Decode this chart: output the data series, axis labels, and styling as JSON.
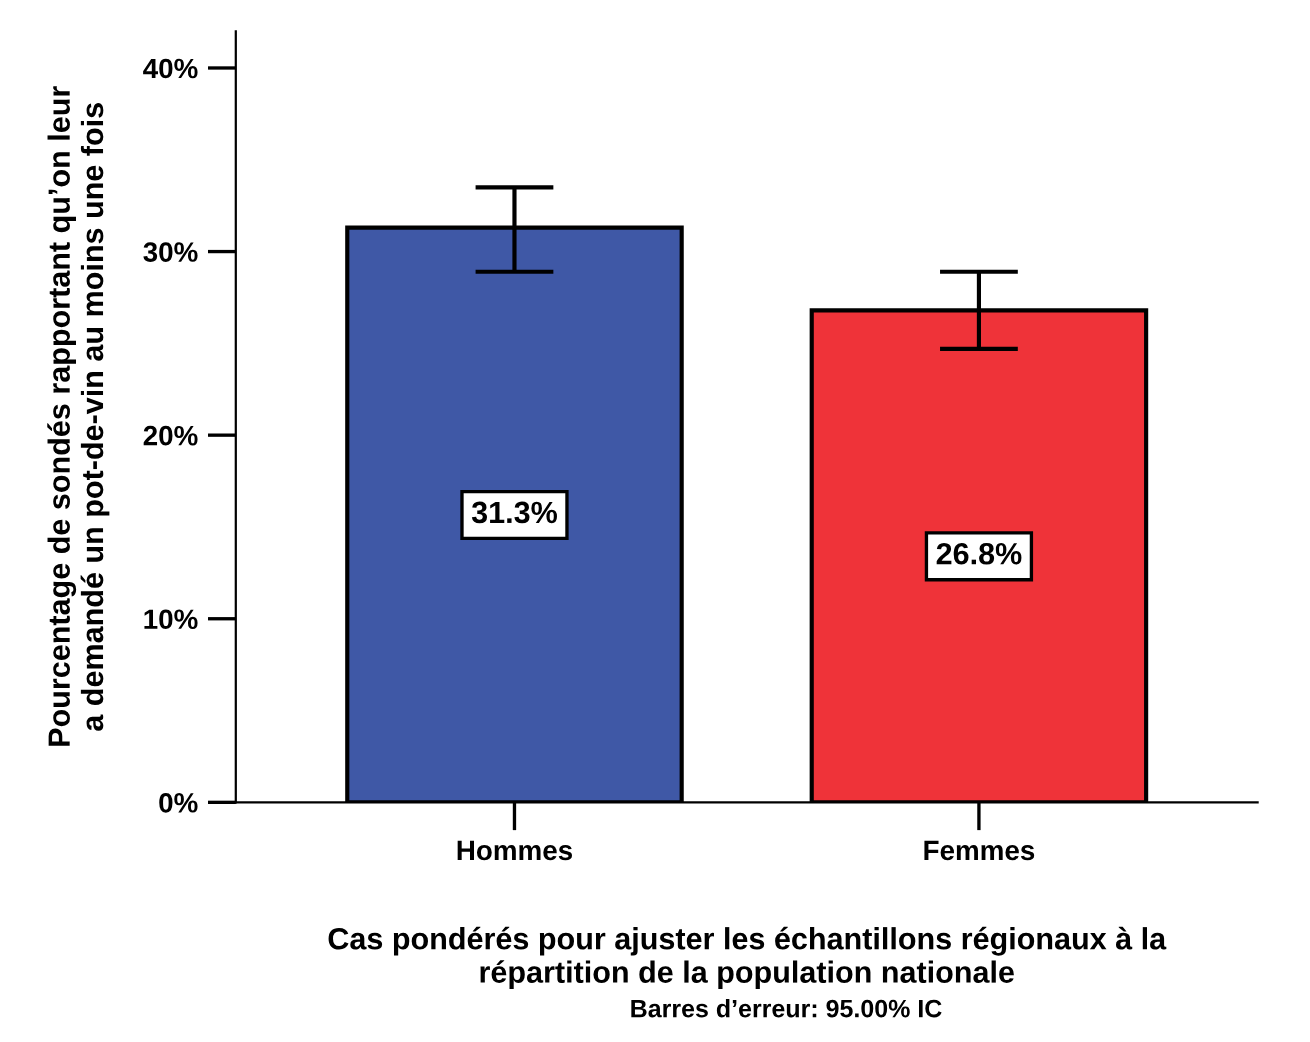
{
  "chart_data": {
    "type": "bar",
    "categories": [
      "Hommes",
      "Femmes"
    ],
    "values": [
      31.3,
      26.8
    ],
    "colors": [
      "#3f58a6",
      "#ef3339"
    ],
    "errors": [
      [
        28.9,
        33.5
      ],
      [
        24.7,
        28.9
      ]
    ],
    "value_labels": [
      "31.3%",
      "26.8%"
    ],
    "ylim": [
      0,
      42
    ],
    "yticks": [
      {
        "value": 0,
        "label": "0%"
      },
      {
        "value": 10,
        "label": "10%"
      },
      {
        "value": 20,
        "label": "20%"
      },
      {
        "value": 30,
        "label": "30%"
      },
      {
        "value": 40,
        "label": "40%"
      }
    ],
    "ylabel": "Pourcentage de sondés rapportant qu’on leur\na demandé un pot-de-vin au moins une fois",
    "xlabel": "Cas pondérés pour ajuster les échantillons régionaux à la\nrépartition de la population nationale",
    "annotations": [
      "Barres d’erreur: 95.00% IC"
    ],
    "grid": false,
    "legend": false
  }
}
